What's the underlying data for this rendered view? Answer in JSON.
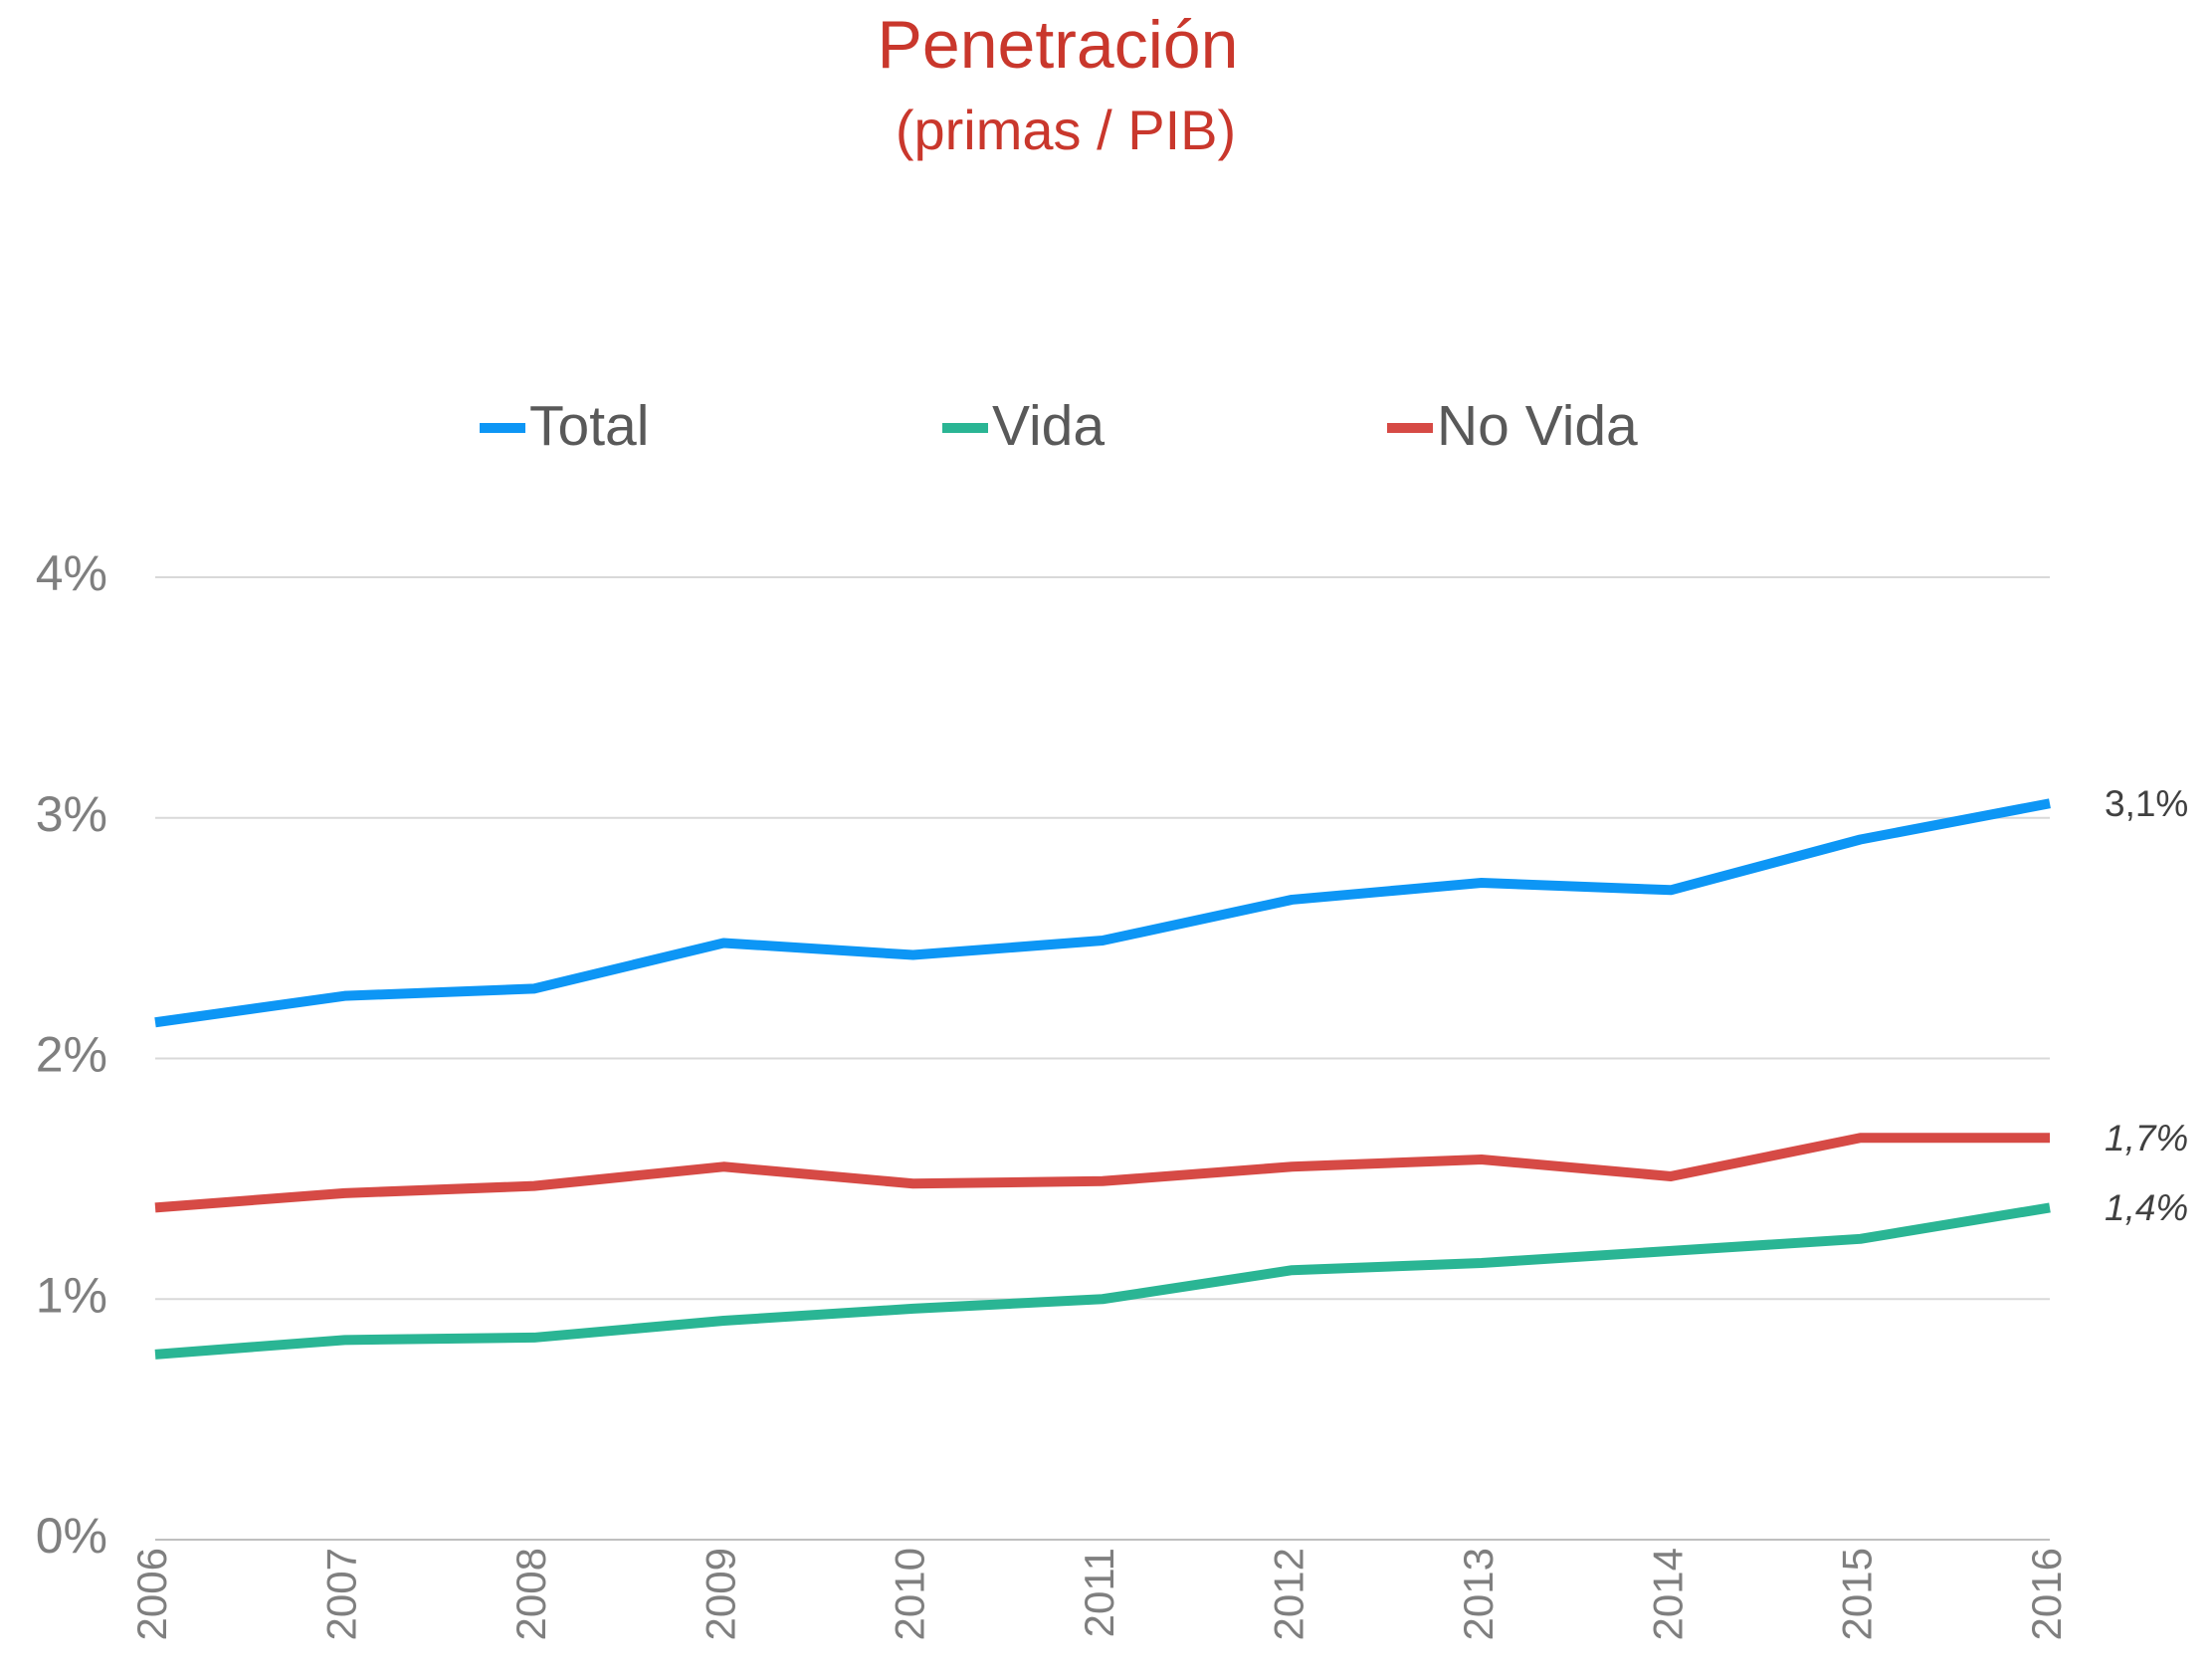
{
  "chart_data": {
    "type": "line",
    "title": "Penetración",
    "subtitle": "(primas / PIB)",
    "categories": [
      "2006",
      "2007",
      "2008",
      "2009",
      "2010",
      "2011",
      "2012",
      "2013",
      "2014",
      "2015",
      "2016"
    ],
    "series": [
      {
        "name": "Total",
        "color": "#0d96f5",
        "values": [
          2.15,
          2.26,
          2.29,
          2.48,
          2.43,
          2.49,
          2.66,
          2.73,
          2.7,
          2.91,
          3.06
        ],
        "value_labels": [
          null,
          null,
          null,
          null,
          null,
          null,
          null,
          null,
          null,
          null,
          "3,1%"
        ]
      },
      {
        "name": "Vida",
        "color": "#2ab594",
        "values": [
          0.77,
          0.83,
          0.84,
          0.91,
          0.96,
          1.0,
          1.12,
          1.15,
          1.2,
          1.25,
          1.38
        ],
        "value_labels": [
          null,
          null,
          null,
          null,
          null,
          null,
          null,
          null,
          null,
          null,
          "1,4%"
        ]
      },
      {
        "name": "No Vida",
        "color": "#d64a45",
        "values": [
          1.38,
          1.44,
          1.47,
          1.55,
          1.48,
          1.49,
          1.55,
          1.58,
          1.51,
          1.67,
          1.67
        ],
        "value_labels": [
          null,
          null,
          null,
          null,
          null,
          null,
          null,
          null,
          null,
          null,
          "1,7%"
        ]
      }
    ],
    "ylim": [
      0,
      4
    ],
    "yticks": [
      {
        "value": 0,
        "label": "0%"
      },
      {
        "value": 1,
        "label": "1%"
      },
      {
        "value": 2,
        "label": "2%"
      },
      {
        "value": 3,
        "label": "3%"
      },
      {
        "value": 4,
        "label": "4%"
      }
    ],
    "grid": true
  }
}
